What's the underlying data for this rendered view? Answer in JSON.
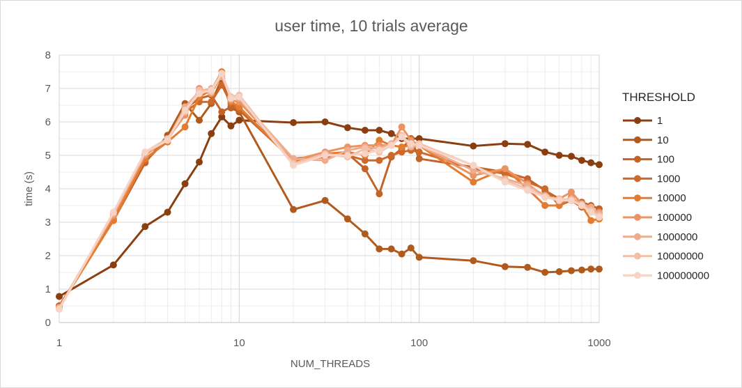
{
  "chart_data": {
    "type": "line",
    "title": "user time, 10 trials average",
    "xlabel": "NUM_THREADS",
    "ylabel": "time (s)",
    "xscale": "log",
    "xlim": [
      1,
      1000
    ],
    "ylim": [
      0,
      8
    ],
    "xticks": [
      "1",
      "10",
      "100",
      "1000"
    ],
    "yticks": [
      "0",
      "1",
      "2",
      "3",
      "4",
      "5",
      "6",
      "7",
      "8"
    ],
    "grid": true,
    "legend": {
      "title": "THRESHOLD",
      "position": "right"
    },
    "x": [
      1,
      2,
      3,
      4,
      5,
      6,
      7,
      8,
      9,
      10,
      20,
      30,
      40,
      50,
      60,
      70,
      80,
      90,
      100,
      200,
      300,
      400,
      500,
      600,
      700,
      800,
      900,
      1000
    ],
    "series": [
      {
        "name": "1",
        "color": "#8b3e10",
        "values": [
          0.78,
          1.72,
          2.87,
          3.3,
          4.15,
          4.8,
          5.65,
          6.15,
          5.88,
          6.05,
          5.98,
          6.0,
          5.83,
          5.75,
          5.75,
          5.65,
          5.5,
          5.5,
          5.5,
          5.28,
          5.35,
          5.33,
          5.1,
          5.0,
          4.97,
          4.85,
          4.78,
          4.72
        ]
      },
      {
        "name": "10",
        "color": "#b05a1e",
        "values": [
          0.5,
          3.05,
          4.78,
          5.6,
          6.55,
          6.05,
          6.55,
          7.3,
          6.42,
          6.3,
          3.38,
          3.65,
          3.1,
          2.65,
          2.2,
          2.2,
          2.05,
          2.23,
          1.95,
          1.85,
          1.67,
          1.65,
          1.5,
          1.52,
          1.55,
          1.57,
          1.6,
          1.6
        ]
      },
      {
        "name": "100",
        "color": "#c2632a",
        "values": [
          0.5,
          3.05,
          4.8,
          5.5,
          6.4,
          6.7,
          6.8,
          6.3,
          6.45,
          6.35,
          4.85,
          4.95,
          5.05,
          4.6,
          3.85,
          4.95,
          5.2,
          5.5,
          4.9,
          4.65,
          4.5,
          4.3,
          3.95,
          3.7,
          3.65,
          3.6,
          3.5,
          3.4
        ]
      },
      {
        "name": "1000",
        "color": "#cc6a2c",
        "values": [
          0.45,
          3.1,
          4.85,
          5.45,
          6.3,
          6.6,
          6.6,
          7.1,
          6.55,
          6.4,
          4.9,
          5.0,
          5.0,
          4.85,
          4.85,
          5.0,
          5.1,
          5.15,
          5.1,
          4.6,
          4.45,
          4.2,
          4.0,
          3.5,
          3.65,
          3.45,
          3.4,
          3.1
        ]
      },
      {
        "name": "10000",
        "color": "#e37c30",
        "values": [
          0.45,
          3.05,
          4.9,
          5.4,
          5.85,
          6.75,
          6.95,
          7.5,
          6.6,
          6.45,
          4.8,
          5.05,
          5.1,
          5.0,
          5.45,
          5.3,
          5.25,
          5.3,
          5.3,
          4.2,
          4.6,
          4.0,
          3.5,
          3.5,
          3.75,
          3.5,
          3.05,
          3.1
        ]
      },
      {
        "name": "100000",
        "color": "#eb9362",
        "values": [
          0.45,
          3.2,
          5.0,
          5.5,
          6.2,
          7.0,
          6.85,
          7.4,
          6.65,
          6.6,
          4.85,
          5.1,
          5.25,
          5.3,
          5.3,
          5.3,
          5.85,
          5.45,
          5.3,
          4.4,
          4.6,
          4.15,
          3.75,
          3.7,
          3.9,
          3.55,
          3.3,
          3.3
        ]
      },
      {
        "name": "1000000",
        "color": "#eeac8e",
        "values": [
          0.45,
          3.25,
          5.05,
          5.45,
          6.45,
          6.9,
          7.0,
          7.35,
          6.75,
          6.7,
          4.9,
          4.85,
          5.15,
          5.25,
          5.2,
          5.35,
          5.55,
          5.25,
          5.3,
          4.55,
          4.3,
          4.1,
          3.8,
          3.65,
          3.7,
          3.55,
          3.45,
          3.25
        ]
      },
      {
        "name": "10000000",
        "color": "#f2bfa8",
        "values": [
          0.4,
          3.3,
          5.1,
          5.5,
          6.3,
          6.95,
          6.9,
          7.45,
          6.75,
          6.8,
          4.75,
          5.05,
          4.95,
          5.2,
          5.1,
          5.3,
          5.6,
          5.3,
          5.35,
          4.7,
          4.25,
          4.0,
          3.75,
          3.7,
          3.65,
          3.5,
          3.35,
          3.2
        ]
      },
      {
        "name": "100000000",
        "color": "#f6d3c4",
        "values": [
          0.4,
          3.3,
          5.1,
          5.45,
          6.35,
          6.85,
          6.95,
          7.45,
          6.7,
          6.75,
          4.7,
          5.0,
          5.0,
          5.05,
          5.15,
          5.3,
          5.55,
          5.35,
          5.3,
          4.7,
          4.2,
          3.95,
          3.75,
          3.65,
          3.65,
          3.5,
          3.3,
          3.15
        ]
      }
    ]
  }
}
